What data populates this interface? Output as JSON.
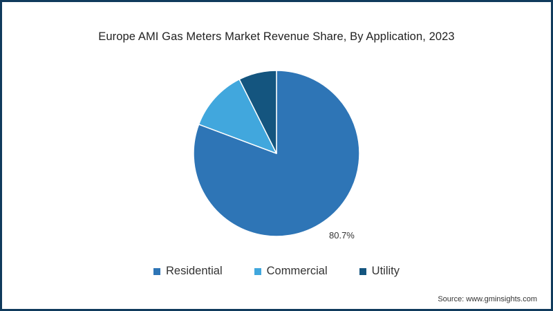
{
  "chart_data": {
    "type": "pie",
    "title": "Europe AMI Gas Meters Market Revenue Share, By Application, 2023",
    "categories": [
      "Residential",
      "Commercial",
      "Utility"
    ],
    "values": [
      80.7,
      11.9,
      7.4
    ],
    "units": "%",
    "colors": [
      "#2e75b6",
      "#41a7dd",
      "#14557f"
    ],
    "start_angle_deg": 0,
    "direction": "clockwise",
    "data_labels": [
      {
        "category": "Residential",
        "text": "80.7%"
      }
    ],
    "legend_position": "bottom",
    "source": "Source: www.gminsights.com"
  },
  "title": "Europe AMI Gas Meters Market Revenue Share, By Application, 2023",
  "label_residential": "80.7%",
  "legend": [
    {
      "label": "Residential",
      "color": "#2e75b6"
    },
    {
      "label": "Commercial",
      "color": "#41a7dd"
    },
    {
      "label": "Utility",
      "color": "#14557f"
    }
  ],
  "source": "Source: www.gminsights.com",
  "frame_color": "#103a5c"
}
